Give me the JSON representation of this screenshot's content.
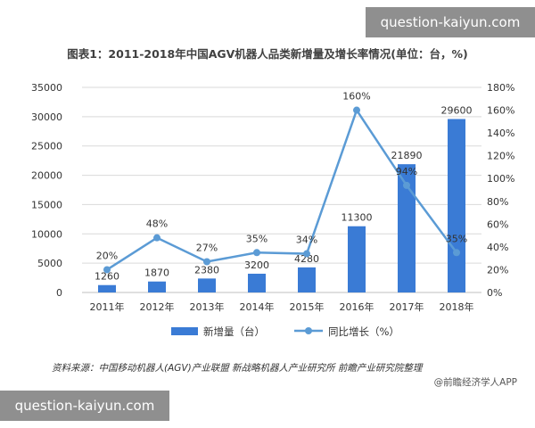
{
  "watermark": "question-kaiyun.com",
  "title": "图表1：2011-2018年中国AGV机器人品类新增量及增长率情况(单位：台，%)",
  "source": "资料来源：中国移动机器人(AGV)产业联盟 新战略机器人产业研究所 前瞻产业研究院整理",
  "credit": "@前瞻经济学人APP",
  "colors": {
    "bar": "#3a7bd5",
    "line": "#5b9bd5",
    "grid": "#d9d9d9",
    "axis": "#bfbfbf"
  },
  "chart_data": {
    "type": "bar",
    "categories": [
      "2011年",
      "2012年",
      "2013年",
      "2014年",
      "2015年",
      "2016年",
      "2017年",
      "2018年"
    ],
    "series": [
      {
        "name": "新增量（台）",
        "type": "bar",
        "axis": "left",
        "values": [
          1260,
          1870,
          2380,
          3200,
          4280,
          11300,
          21890,
          29600
        ],
        "labels": [
          "1260",
          "1870",
          "2380",
          "3200",
          "4280",
          "11300",
          "21890",
          "29600"
        ]
      },
      {
        "name": "同比增长（%）",
        "type": "line",
        "axis": "right",
        "values": [
          20,
          48,
          27,
          35,
          34,
          160,
          94,
          35
        ],
        "labels": [
          "20%",
          "48%",
          "27%",
          "35%",
          "34%",
          "160%",
          "94%",
          "35%"
        ]
      }
    ],
    "y_left": {
      "ylim": [
        0,
        35000
      ],
      "ticks": [
        "0",
        "5000",
        "10000",
        "15000",
        "20000",
        "25000",
        "30000",
        "35000"
      ]
    },
    "y_right": {
      "ylim": [
        0,
        180
      ],
      "ticks": [
        "0%",
        "20%",
        "40%",
        "60%",
        "80%",
        "100%",
        "120%",
        "140%",
        "160%",
        "180%"
      ]
    },
    "grid": true,
    "legend": "bottom"
  }
}
